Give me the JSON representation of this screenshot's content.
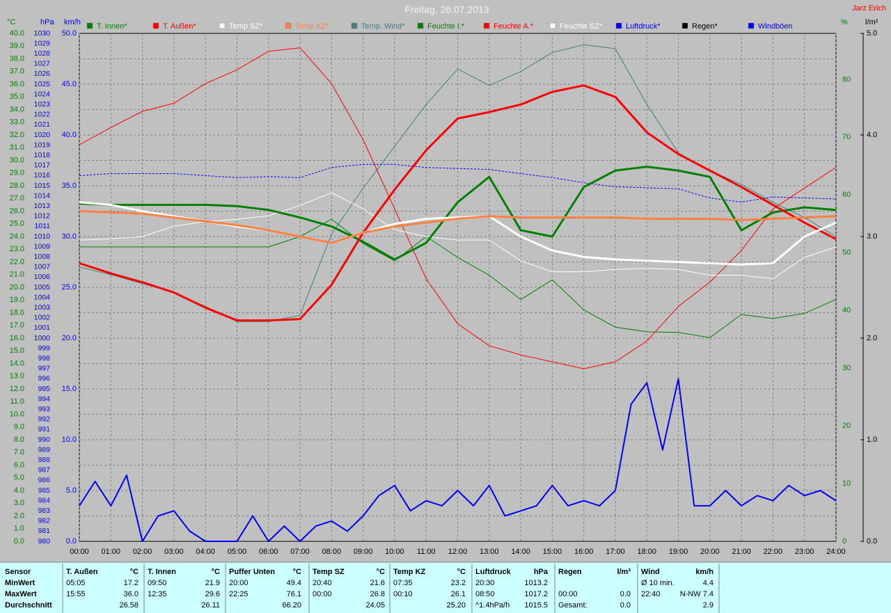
{
  "chart_data": {
    "type": "line",
    "title": "Freitag, 26.07.2013",
    "author": "Jarz Erich",
    "grid": true,
    "x": [
      0,
      1,
      2,
      3,
      4,
      5,
      6,
      7,
      8,
      9,
      10,
      11,
      12,
      13,
      14,
      15,
      16,
      17,
      18,
      19,
      20,
      21,
      22,
      23,
      24
    ],
    "xlim": [
      0,
      24
    ],
    "xticks": [
      {
        "value": 0,
        "label": "00:00"
      },
      {
        "value": 1,
        "label": "01:00"
      },
      {
        "value": 2,
        "label": "02:00"
      },
      {
        "value": 3,
        "label": "03:00"
      },
      {
        "value": 4,
        "label": "04:00"
      },
      {
        "value": 5,
        "label": "05:00"
      },
      {
        "value": 6,
        "label": "06:00"
      },
      {
        "value": 7,
        "label": "07:00"
      },
      {
        "value": 8,
        "label": "08:00"
      },
      {
        "value": 9,
        "label": "09:00"
      },
      {
        "value": 10,
        "label": "10:00"
      },
      {
        "value": 11,
        "label": "11:00"
      },
      {
        "value": 12,
        "label": "12:00"
      },
      {
        "value": 13,
        "label": "13:00"
      },
      {
        "value": 14,
        "label": "14:00"
      },
      {
        "value": 15,
        "label": "15:00"
      },
      {
        "value": 16,
        "label": "16:00"
      },
      {
        "value": 17,
        "label": "17:00"
      },
      {
        "value": 18,
        "label": "18:00"
      },
      {
        "value": 19,
        "label": "19:00"
      },
      {
        "value": 20,
        "label": "20:00"
      },
      {
        "value": 21,
        "label": "21:00"
      },
      {
        "value": 22,
        "label": "22:00"
      },
      {
        "value": 23,
        "label": "23:00"
      },
      {
        "value": 24,
        "label": "24:00"
      }
    ],
    "axes": {
      "temp": {
        "label": "°C",
        "color": "#008000",
        "side": "left",
        "ylim": [
          0,
          40
        ],
        "yticks": [
          {
            "value": 0,
            "label": "0.0"
          },
          {
            "value": 1,
            "label": "1.0"
          },
          {
            "value": 2,
            "label": "2.0"
          },
          {
            "value": 3,
            "label": "3.0"
          },
          {
            "value": 4,
            "label": "4.0"
          },
          {
            "value": 5,
            "label": "5.0"
          },
          {
            "value": 6,
            "label": "6.0"
          },
          {
            "value": 7,
            "label": "7.0"
          },
          {
            "value": 8,
            "label": "8.0"
          },
          {
            "value": 9,
            "label": "9.0"
          },
          {
            "value": 10,
            "label": "10.0"
          },
          {
            "value": 11,
            "label": "11.0"
          },
          {
            "value": 12,
            "label": "12.0"
          },
          {
            "value": 13,
            "label": "13.0"
          },
          {
            "value": 14,
            "label": "14.0"
          },
          {
            "value": 15,
            "label": "15.0"
          },
          {
            "value": 16,
            "label": "16.0"
          },
          {
            "value": 17,
            "label": "17.0"
          },
          {
            "value": 18,
            "label": "18.0"
          },
          {
            "value": 19,
            "label": "19.0"
          },
          {
            "value": 20,
            "label": "20.0"
          },
          {
            "value": 21,
            "label": "21.0"
          },
          {
            "value": 22,
            "label": "22.0"
          },
          {
            "value": 23,
            "label": "23.0"
          },
          {
            "value": 24,
            "label": "24.0"
          },
          {
            "value": 25,
            "label": "25.0"
          },
          {
            "value": 26,
            "label": "26.0"
          },
          {
            "value": 27,
            "label": "27.0"
          },
          {
            "value": 28,
            "label": "28.0"
          },
          {
            "value": 29,
            "label": "29.0"
          },
          {
            "value": 30,
            "label": "30.0"
          },
          {
            "value": 31,
            "label": "31.0"
          },
          {
            "value": 32,
            "label": "32.0"
          },
          {
            "value": 33,
            "label": "33.0"
          },
          {
            "value": 34,
            "label": "34.0"
          },
          {
            "value": 35,
            "label": "35.0"
          },
          {
            "value": 36,
            "label": "36.0"
          },
          {
            "value": 37,
            "label": "37.0"
          },
          {
            "value": 38,
            "label": "38.0"
          },
          {
            "value": 39,
            "label": "39.0"
          },
          {
            "value": 40,
            "label": "40.0"
          }
        ]
      },
      "pressure": {
        "label": "hPa",
        "color": "#0000ff",
        "side": "left",
        "ylim": [
          980,
          1030
        ],
        "yticks": [
          980,
          981,
          982,
          983,
          984,
          985,
          986,
          987,
          988,
          989,
          990,
          991,
          992,
          993,
          994,
          995,
          996,
          997,
          998,
          999,
          1000,
          1001,
          1002,
          1003,
          1004,
          1005,
          1006,
          1007,
          1008,
          1009,
          1010,
          1011,
          1012,
          1013,
          1014,
          1015,
          1016,
          1017,
          1018,
          1019,
          1020,
          1021,
          1022,
          1023,
          1024,
          1025,
          1026,
          1027,
          1028,
          1029,
          1030
        ]
      },
      "wind": {
        "label": "km/h",
        "color": "#0000ff",
        "side": "left",
        "ylim": [
          0,
          50
        ],
        "yticks": [
          {
            "value": 0,
            "label": "0.0"
          },
          {
            "value": 5,
            "label": "5.0"
          },
          {
            "value": 10,
            "label": "10.0"
          },
          {
            "value": 15,
            "label": "15.0"
          },
          {
            "value": 20,
            "label": "20.0"
          },
          {
            "value": 25,
            "label": "25.0"
          },
          {
            "value": 30,
            "label": "30.0"
          },
          {
            "value": 35,
            "label": "35.0"
          },
          {
            "value": 40,
            "label": "40.0"
          },
          {
            "value": 45,
            "label": "45.0"
          },
          {
            "value": 50,
            "label": "50.0"
          }
        ]
      },
      "humidity": {
        "label": "%",
        "color": "#008000",
        "side": "right",
        "ylim": [
          0,
          88
        ],
        "yticks": [
          0,
          10,
          20,
          30,
          40,
          50,
          60,
          70,
          80
        ]
      },
      "rain": {
        "label": "l/m²",
        "color": "#000000",
        "side": "right",
        "ylim": [
          0,
          5
        ],
        "yticks": [
          {
            "value": 0,
            "label": "0.0"
          },
          {
            "value": 1,
            "label": "1.0"
          },
          {
            "value": 2,
            "label": "2.0"
          },
          {
            "value": 3,
            "label": "3.0"
          },
          {
            "value": 4,
            "label": "4.0"
          },
          {
            "value": 5,
            "label": "5.0"
          }
        ]
      }
    },
    "series": [
      {
        "name": "T. Innen*",
        "color": "#008000",
        "axis": "temp",
        "style": "thick",
        "values": [
          26.6,
          26.5,
          26.5,
          26.5,
          26.5,
          26.4,
          26.1,
          25.5,
          24.8,
          23.6,
          22.2,
          23.5,
          26.7,
          28.7,
          24.5,
          24.0,
          27.9,
          29.2,
          29.5,
          29.2,
          28.7,
          24.5,
          25.9,
          26.3,
          26.1
        ]
      },
      {
        "name": "T. Außen*",
        "color": "#ff0000",
        "axis": "temp",
        "style": "thick",
        "values": [
          21.9,
          21.1,
          20.4,
          19.6,
          18.4,
          17.4,
          17.4,
          17.5,
          20.2,
          24.3,
          27.7,
          30.8,
          33.3,
          33.8,
          34.4,
          35.4,
          35.9,
          35.0,
          32.2,
          30.5,
          29.2,
          27.9,
          26.5,
          25.1,
          23.8
        ]
      },
      {
        "name": "Temp SZ*",
        "color": "#ffffff",
        "axis": "temp",
        "style": "thick",
        "values": [
          26.7,
          26.5,
          26.0,
          25.6,
          25.2,
          24.8,
          24.5,
          24.0,
          23.5,
          24.3,
          25.0,
          25.4,
          25.5,
          25.6,
          24.0,
          22.9,
          22.4,
          22.2,
          22.1,
          22.0,
          21.9,
          21.8,
          21.9,
          24.0,
          25.1
        ]
      },
      {
        "name": "Temp KZ*",
        "color": "#ff8040",
        "axis": "temp",
        "style": "thick",
        "values": [
          26.0,
          25.9,
          25.8,
          25.5,
          25.2,
          24.9,
          24.5,
          24.0,
          23.5,
          24.3,
          24.8,
          25.1,
          25.4,
          25.6,
          25.5,
          25.5,
          25.5,
          25.5,
          25.4,
          25.4,
          25.4,
          25.3,
          25.4,
          25.5,
          25.6
        ]
      },
      {
        "name": "Temp. Wind*",
        "color": "#408080",
        "axis": "temp",
        "style": "thin",
        "values": [
          21.6,
          21.0,
          20.3,
          19.6,
          18.5,
          17.3,
          17.3,
          17.8,
          24.2,
          27.8,
          31.1,
          34.4,
          37.2,
          35.9,
          37.0,
          38.5,
          39.1,
          38.8,
          34.4,
          30.6,
          29.2,
          28.1,
          26.7,
          25.5,
          24.0
        ]
      },
      {
        "name": "Feuchte I.*",
        "color": "#008000",
        "axis": "humidity",
        "style": "thin",
        "values": [
          51.0,
          51.0,
          51.0,
          51.0,
          51.0,
          51.0,
          51.0,
          52.8,
          55.8,
          51.6,
          48.6,
          52.8,
          49.2,
          46.1,
          41.9,
          45.3,
          40.1,
          37.1,
          36.3,
          36.2,
          35.3,
          39.3,
          38.6,
          39.5,
          41.9
        ]
      },
      {
        "name": "Feuchte A.*",
        "color": "#ff0000",
        "axis": "humidity",
        "style": "thin",
        "values": [
          68.7,
          71.7,
          74.5,
          75.9,
          79.3,
          81.7,
          84.9,
          85.5,
          79.3,
          69.6,
          57.6,
          45.5,
          37.7,
          33.9,
          32.3,
          31.1,
          29.9,
          31.1,
          34.7,
          40.7,
          44.9,
          50.4,
          57.6,
          61.2,
          64.8
        ]
      },
      {
        "name": "Feuchte SZ*",
        "color": "#ffffff",
        "axis": "humidity",
        "style": "thin",
        "values": [
          52.2,
          52.4,
          52.8,
          54.6,
          55.4,
          55.8,
          56.4,
          58.2,
          60.4,
          57.6,
          54.0,
          52.8,
          52.2,
          52.2,
          48.6,
          46.7,
          46.7,
          47.1,
          47.3,
          47.1,
          46.1,
          46.1,
          45.5,
          49.2,
          51.0
        ]
      },
      {
        "name": "Luftdruck*",
        "color": "#0000ff",
        "axis": "pressure",
        "style": "dashed",
        "values": [
          1016.0,
          1016.2,
          1016.2,
          1016.2,
          1016.0,
          1015.8,
          1015.9,
          1015.8,
          1016.8,
          1017.1,
          1017.1,
          1016.8,
          1016.7,
          1016.6,
          1016.2,
          1015.8,
          1015.3,
          1014.9,
          1014.8,
          1014.7,
          1013.8,
          1013.4,
          1013.9,
          1013.8,
          1013.7
        ]
      },
      {
        "name": "Regen*",
        "color": "#000000",
        "axis": "rain",
        "style": "thin",
        "values": [
          0,
          0,
          0,
          0,
          0,
          0,
          0,
          0,
          0,
          0,
          0,
          0,
          0,
          0,
          0,
          0,
          0,
          0,
          0,
          0,
          0,
          0,
          0,
          0,
          0
        ]
      },
      {
        "name": "Windböen",
        "color": "#0000ff",
        "axis": "wind",
        "style": "medium",
        "x": [
          0,
          0.5,
          1,
          1.5,
          2,
          2.5,
          3,
          3.5,
          4,
          4.5,
          5,
          5.5,
          6,
          6.5,
          7,
          7.5,
          8,
          8.5,
          9,
          9.5,
          10,
          10.5,
          11,
          11.5,
          12,
          12.5,
          13,
          13.5,
          14,
          14.5,
          15,
          15.5,
          16,
          16.5,
          17,
          17.5,
          18,
          18.5,
          19,
          19.5,
          20,
          20.5,
          21,
          21.5,
          22,
          22.5,
          23,
          23.5,
          24
        ],
        "values": [
          3.5,
          5.9,
          3.5,
          6.5,
          0,
          2.5,
          3.0,
          1.0,
          0,
          0,
          0,
          2.5,
          0,
          1.5,
          0,
          1.5,
          2.0,
          1.0,
          2.5,
          4.5,
          5.5,
          3.0,
          4.0,
          3.5,
          5.0,
          3.5,
          5.5,
          2.5,
          3.0,
          3.5,
          5.5,
          3.5,
          4.0,
          3.5,
          5.0,
          13.5,
          15.6,
          9.0,
          16.0,
          3.5,
          3.5,
          5.0,
          3.5,
          4.5,
          4.0,
          5.5,
          4.5,
          5.0,
          4.0
        ]
      }
    ]
  },
  "stats": {
    "row_labels": [
      "Sensor",
      "MinWert",
      "MaxWert",
      "Durchschnitt"
    ],
    "groups": [
      {
        "name": "T. Außen",
        "unit": "°C",
        "cells": [
          {
            "left": "05:05",
            "right": "17.2"
          },
          {
            "left": "15:55",
            "right": "36.0"
          },
          {
            "right": "26.58"
          }
        ]
      },
      {
        "name": "T. Innen",
        "unit": "°C",
        "cells": [
          {
            "left": "09:50",
            "right": "21.9"
          },
          {
            "left": "12:35",
            "right": "29.6"
          },
          {
            "right": "26.11"
          }
        ]
      },
      {
        "name": "Puffer Unten",
        "unit": "°C",
        "cells": [
          {
            "left": "20:00",
            "right": "49.4"
          },
          {
            "left": "22:25",
            "right": "76.1"
          },
          {
            "right": "66.20"
          }
        ]
      },
      {
        "name": "Temp SZ",
        "unit": "°C",
        "cells": [
          {
            "left": "20:40",
            "right": "21.6"
          },
          {
            "left": "00:00",
            "right": "26.8"
          },
          {
            "right": "24.05"
          }
        ]
      },
      {
        "name": "Temp KZ",
        "unit": "°C",
        "cells": [
          {
            "left": "07:35",
            "right": "23.2"
          },
          {
            "left": "00:10",
            "right": "26.1"
          },
          {
            "right": "25.20"
          }
        ]
      },
      {
        "name": "Luftdruck",
        "unit": "hPa",
        "cells": [
          {
            "left": "20:30",
            "right": "1013.2"
          },
          {
            "left": "08:50",
            "right": "1017.2"
          },
          {
            "left": "^1.4hPa/h",
            "right": "1015.5"
          }
        ]
      },
      {
        "name": "Regen",
        "unit": "l/m²",
        "cells": [
          {},
          {
            "left": "00:00",
            "right": "0.0"
          },
          {
            "left": "Gesamt:",
            "right": "0.0"
          }
        ]
      },
      {
        "name": "Wind",
        "unit": "km/h",
        "cells": [
          {
            "left": "Ø 10 min.",
            "right": "4.4"
          },
          {
            "left": "22:40",
            "right": "N-NW 7.4"
          },
          {
            "right": "2.9"
          }
        ]
      }
    ]
  }
}
